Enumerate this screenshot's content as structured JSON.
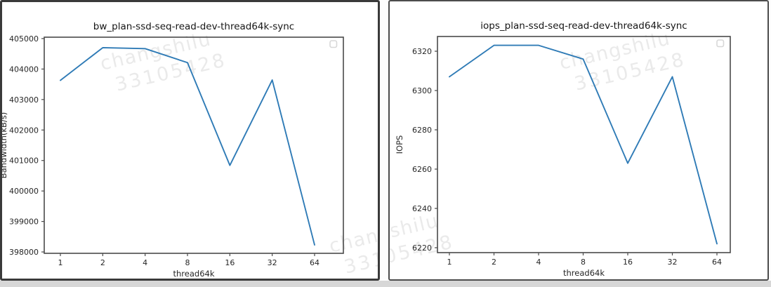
{
  "watermark": {
    "line1": "changshilu",
    "line2": "33105428"
  },
  "chart_data": [
    {
      "type": "line",
      "title": "bw_plan-ssd-seq-read-dev-thread64k-sync",
      "xlabel": "thread64k",
      "ylabel": "Bandwidth(kB/s)",
      "categories": [
        "1",
        "2",
        "4",
        "8",
        "16",
        "32",
        "64"
      ],
      "values": [
        403630,
        404700,
        404670,
        404210,
        400840,
        403640,
        398230
      ],
      "ylim": [
        397955,
        405045
      ],
      "yticks": [
        398000,
        399000,
        400000,
        401000,
        402000,
        403000,
        404000,
        405000
      ],
      "line_color": "#2f7bb6",
      "grid": false,
      "legend": "empty-box-top-right",
      "x_spacing": "categorical-even"
    },
    {
      "type": "line",
      "title": "iops_plan-ssd-seq-read-dev-thread64k-sync",
      "xlabel": "thread64k",
      "ylabel": "IOPS",
      "categories": [
        "1",
        "2",
        "4",
        "8",
        "16",
        "32",
        "64"
      ],
      "values": [
        6307,
        6323,
        6323,
        6316,
        6263,
        6307,
        6222
      ],
      "ylim": [
        6217.5,
        6327.5
      ],
      "yticks": [
        6220,
        6240,
        6260,
        6280,
        6300,
        6320
      ],
      "line_color": "#2f7bb6",
      "grid": false,
      "legend": "empty-box-top-right",
      "x_spacing": "categorical-even"
    }
  ]
}
